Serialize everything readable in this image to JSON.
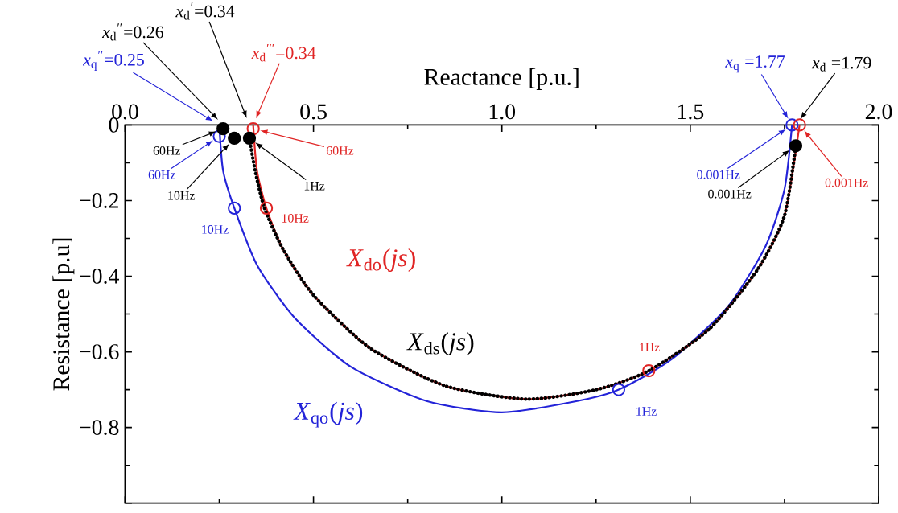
{
  "chart_data": {
    "type": "line",
    "xlabel": "Reactance [p.u.]",
    "ylabel": "Resistance  [p.u]",
    "xlim": [
      0,
      2
    ],
    "ylim": [
      -1,
      0
    ],
    "xticks": [
      {
        "value": 0,
        "label": "0.0"
      },
      {
        "value": 0.5,
        "label": "0.5"
      },
      {
        "value": 1,
        "label": "1.0"
      },
      {
        "value": 1.5,
        "label": "1.5"
      },
      {
        "value": 2,
        "label": "2.0"
      }
    ],
    "yticks": [
      {
        "value": 0,
        "label": "0"
      },
      {
        "value": -0.2,
        "label": "−0.2"
      },
      {
        "value": -0.4,
        "label": "−0.4"
      },
      {
        "value": -0.6,
        "label": "−0.6"
      },
      {
        "value": -0.8,
        "label": "−0.8"
      },
      {
        "value": -1,
        "label": null
      }
    ],
    "series": [
      {
        "name": "*X*$_{qo}$(*js*)",
        "line_style": "solid",
        "color": "#2323d8",
        "x": [
          0.25,
          0.26,
          0.29,
          0.35,
          0.45,
          0.6,
          0.8,
          1.0,
          1.2,
          1.31,
          1.45,
          1.6,
          1.7,
          1.75,
          1.77
        ],
        "values": [
          0,
          -0.12,
          -0.22,
          -0.37,
          -0.51,
          -0.64,
          -0.73,
          -0.76,
          -0.73,
          -0.7,
          -0.62,
          -0.48,
          -0.32,
          -0.17,
          0
        ]
      },
      {
        "name": "*X*$_{do}$(*js*)",
        "line_style": "solid",
        "color": "#e02424",
        "x": [
          0.34,
          0.35,
          0.375,
          0.42,
          0.5,
          0.65,
          0.85,
          1.065,
          1.25,
          1.39,
          1.55,
          1.68,
          1.75,
          1.79
        ],
        "values": [
          0,
          -0.12,
          -0.22,
          -0.33,
          -0.45,
          -0.59,
          -0.69,
          -0.725,
          -0.7,
          -0.65,
          -0.54,
          -0.38,
          -0.24,
          0
        ]
      },
      {
        "name": "*X*$_{ds}$(*js*)",
        "line_style": "dotted",
        "color": "#000000",
        "x": [
          0.33,
          0.345,
          0.37,
          0.42,
          0.5,
          0.65,
          0.85,
          1.065,
          1.25,
          1.39,
          1.55,
          1.68,
          1.75,
          1.78
        ],
        "values": [
          -0.035,
          -0.12,
          -0.22,
          -0.33,
          -0.45,
          -0.59,
          -0.69,
          -0.725,
          -0.7,
          -0.65,
          -0.54,
          -0.38,
          -0.24,
          -0.055
        ]
      },
      {
        "type": "scatter",
        "marker": "circle",
        "color": "#2323d8",
        "x": [
          0.25,
          0.29,
          1.31,
          1.77
        ],
        "values": [
          -0.03,
          -0.22,
          -0.7,
          0
        ]
      },
      {
        "type": "scatter",
        "marker": "circle",
        "color": "#e02424",
        "x": [
          0.34,
          0.375,
          1.39,
          1.79
        ],
        "values": [
          -0.01,
          -0.22,
          -0.65,
          0
        ]
      },
      {
        "type": "scatter",
        "marker": "circle",
        "color": "#000000",
        "x": [
          0.26,
          0.29,
          0.33,
          1.78
        ],
        "values": [
          -0.01,
          -0.035,
          -0.035,
          -0.055
        ]
      }
    ],
    "annotations": [
      {
        "text": "*x*$_{q}$$^{′′}$=0.25",
        "x": 0.25,
        "y": 0
      },
      {
        "text": "*x*$_{d}$$^{′′}$=0.26",
        "x": 0.26,
        "y": 0
      },
      {
        "text": "*x*$_{d}$$^{′}$=0.34",
        "x": 0.33,
        "y": 0
      },
      {
        "text": "*x*$_{d}$$^{′′′}$=0.34",
        "x": 0.34,
        "y": 0
      },
      {
        "text": "*x*$_{q}$ =1.77",
        "x": 1.77,
        "y": 0
      },
      {
        "text": "*x*$_{d}$ =1.79",
        "x": 1.78,
        "y": 0
      },
      {
        "text": "60Hz",
        "x": 0.26,
        "y": -0.01
      },
      {
        "text": "60Hz",
        "x": 0.25,
        "y": -0.03
      },
      {
        "text": "10Hz",
        "x": 0.29,
        "y": -0.035
      },
      {
        "text": "1Hz",
        "x": 0.33,
        "y": -0.035
      },
      {
        "text": "60Hz",
        "x": 0.34,
        "y": -0.01
      },
      {
        "text": "10Hz",
        "x": 0.29,
        "y": -0.22
      },
      {
        "text": "10Hz",
        "x": 0.375,
        "y": -0.22
      },
      {
        "text": "1Hz",
        "x": 1.39,
        "y": -0.65
      },
      {
        "text": "1Hz",
        "x": 1.31,
        "y": -0.7
      },
      {
        "text": "0.001Hz",
        "x": 1.77,
        "y": 0
      },
      {
        "text": "0.001Hz",
        "x": 1.78,
        "y": -0.055
      },
      {
        "text": "0.001Hz",
        "x": 1.79,
        "y": 0
      }
    ]
  }
}
